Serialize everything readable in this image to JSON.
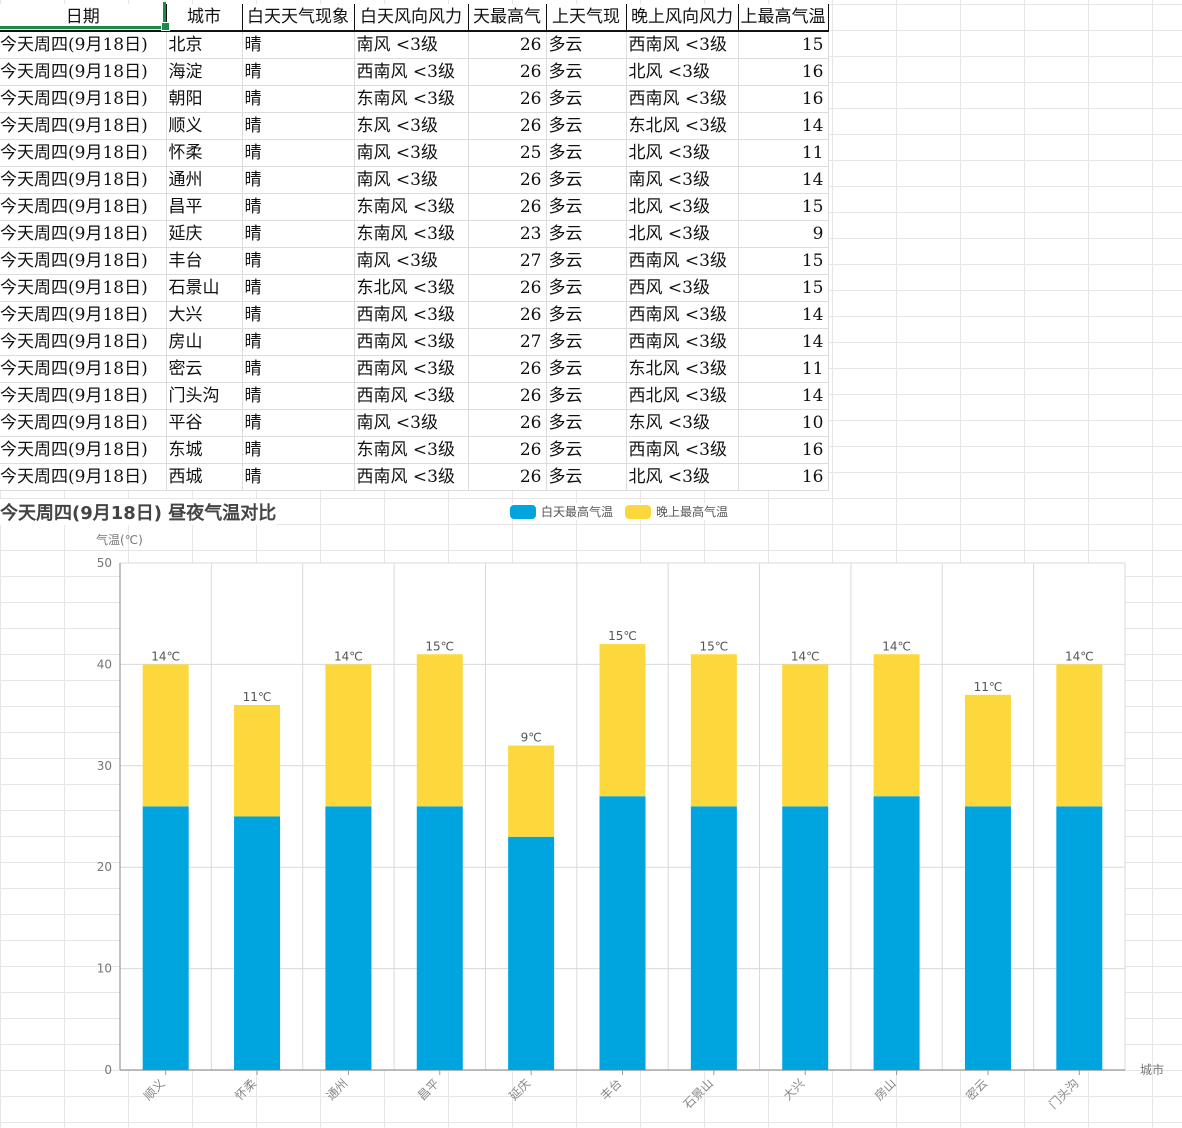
{
  "sheet": {
    "headers": [
      "日期",
      "城市",
      "白天天气现象",
      "白天风向风力",
      "天最高气",
      "上天气现",
      "晚上风向风力",
      "上最高气温"
    ],
    "rows": [
      [
        "今天周四(9月18日)",
        "北京",
        "晴",
        "南风 <3级",
        "26",
        "多云",
        "西南风 <3级",
        "15"
      ],
      [
        "今天周四(9月18日)",
        "海淀",
        "晴",
        "西南风 <3级",
        "26",
        "多云",
        "北风 <3级",
        "16"
      ],
      [
        "今天周四(9月18日)",
        "朝阳",
        "晴",
        "东南风 <3级",
        "26",
        "多云",
        "西南风 <3级",
        "16"
      ],
      [
        "今天周四(9月18日)",
        "顺义",
        "晴",
        "东风 <3级",
        "26",
        "多云",
        "东北风 <3级",
        "14"
      ],
      [
        "今天周四(9月18日)",
        "怀柔",
        "晴",
        "南风 <3级",
        "25",
        "多云",
        "北风 <3级",
        "11"
      ],
      [
        "今天周四(9月18日)",
        "通州",
        "晴",
        "南风 <3级",
        "26",
        "多云",
        "南风 <3级",
        "14"
      ],
      [
        "今天周四(9月18日)",
        "昌平",
        "晴",
        "东南风 <3级",
        "26",
        "多云",
        "北风 <3级",
        "15"
      ],
      [
        "今天周四(9月18日)",
        "延庆",
        "晴",
        "东南风 <3级",
        "23",
        "多云",
        "北风 <3级",
        "9"
      ],
      [
        "今天周四(9月18日)",
        "丰台",
        "晴",
        "南风 <3级",
        "27",
        "多云",
        "西南风 <3级",
        "15"
      ],
      [
        "今天周四(9月18日)",
        "石景山",
        "晴",
        "东北风 <3级",
        "26",
        "多云",
        "西风 <3级",
        "15"
      ],
      [
        "今天周四(9月18日)",
        "大兴",
        "晴",
        "西南风 <3级",
        "26",
        "多云",
        "西南风 <3级",
        "14"
      ],
      [
        "今天周四(9月18日)",
        "房山",
        "晴",
        "西南风 <3级",
        "27",
        "多云",
        "西南风 <3级",
        "14"
      ],
      [
        "今天周四(9月18日)",
        "密云",
        "晴",
        "西南风 <3级",
        "26",
        "多云",
        "东北风 <3级",
        "11"
      ],
      [
        "今天周四(9月18日)",
        "门头沟",
        "晴",
        "西南风 <3级",
        "26",
        "多云",
        "西北风 <3级",
        "14"
      ],
      [
        "今天周四(9月18日)",
        "平谷",
        "晴",
        "南风 <3级",
        "26",
        "多云",
        "东风 <3级",
        "10"
      ],
      [
        "今天周四(9月18日)",
        "东城",
        "晴",
        "东南风 <3级",
        "26",
        "多云",
        "西南风 <3级",
        "16"
      ],
      [
        "今天周四(9月18日)",
        "西城",
        "晴",
        "西南风 <3级",
        "26",
        "多云",
        "北风 <3级",
        "16"
      ]
    ]
  },
  "chart_data": {
    "type": "bar",
    "stacked": true,
    "title": "今天周四(9月18日) 昼夜气温对比",
    "xlabel": "城市",
    "ylabel": "气温(℃)",
    "ylim": [
      0,
      50
    ],
    "yticks": [
      0,
      10,
      20,
      30,
      40,
      50
    ],
    "grid": true,
    "legend_position": "top",
    "unit_suffix": "℃",
    "categories": [
      "顺义",
      "怀柔",
      "通州",
      "昌平",
      "延庆",
      "丰台",
      "石景山",
      "大兴",
      "房山",
      "密云",
      "门头沟"
    ],
    "series": [
      {
        "name": "白天最高气温",
        "color": "#00a5e0",
        "values": [
          26,
          25,
          26,
          26,
          23,
          27,
          26,
          26,
          27,
          26,
          26
        ]
      },
      {
        "name": "晚上最高气温",
        "color": "#fdd83c",
        "values": [
          14,
          11,
          14,
          15,
          9,
          15,
          15,
          14,
          14,
          11,
          14
        ]
      }
    ]
  }
}
